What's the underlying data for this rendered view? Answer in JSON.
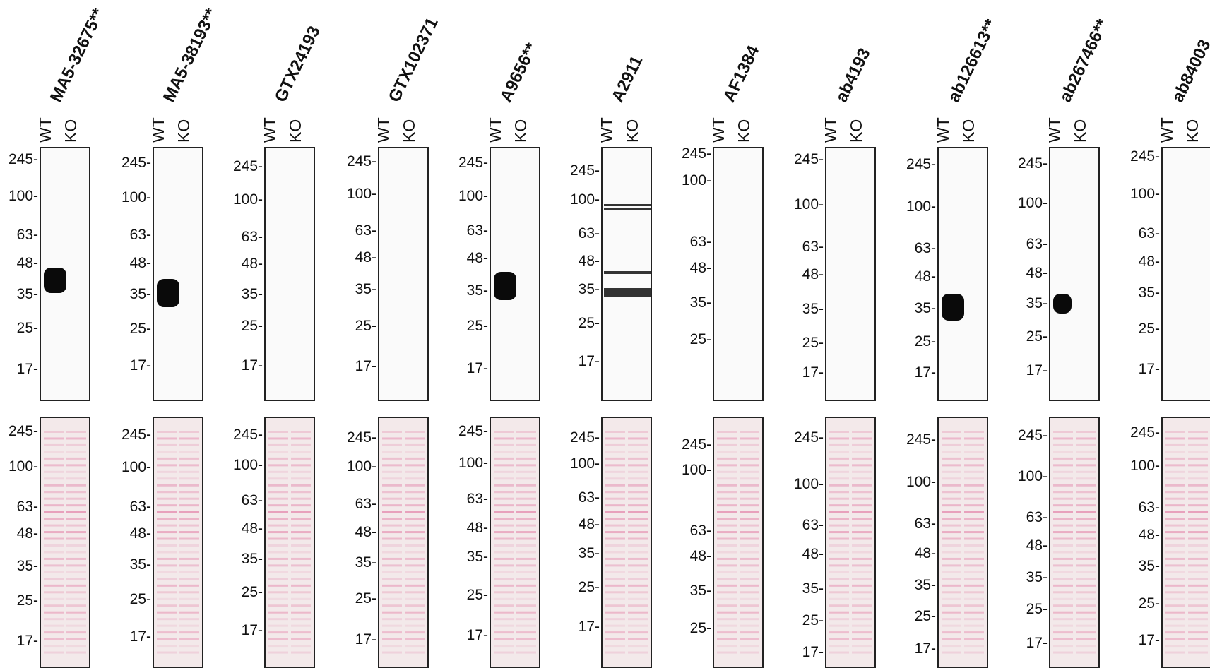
{
  "lanes": [
    "WT",
    "KO"
  ],
  "antibodies": [
    {
      "name": "MA5-32675**",
      "blot_mw": [
        "245-",
        "100-",
        "63-",
        "48-",
        "35-",
        "25-",
        "17-"
      ],
      "stain_mw": [
        "245-",
        "100-",
        "63-",
        "48-",
        "35-",
        "25-",
        "17-"
      ]
    },
    {
      "name": "MA5-38193**",
      "blot_mw": [
        "245-",
        "100-",
        "63-",
        "48-",
        "35-",
        "25-",
        "17-"
      ],
      "stain_mw": [
        "245-",
        "100-",
        "63-",
        "48-",
        "35-",
        "25-",
        "17-"
      ]
    },
    {
      "name": "GTX24193",
      "blot_mw": [
        "245-",
        "100-",
        "63-",
        "48-",
        "35-",
        "25-",
        "17-"
      ],
      "stain_mw": [
        "245-",
        "100-",
        "63-",
        "48-",
        "35-",
        "25-",
        "17-"
      ]
    },
    {
      "name": "GTX102371",
      "blot_mw": [
        "245-",
        "100-",
        "63-",
        "48-",
        "35-",
        "25-",
        "17-"
      ],
      "stain_mw": [
        "245-",
        "100-",
        "63-",
        "48-",
        "35-",
        "25-",
        "17-"
      ]
    },
    {
      "name": "A9656**",
      "blot_mw": [
        "245-",
        "100-",
        "63-",
        "48-",
        "35-",
        "25-",
        "17-"
      ],
      "stain_mw": [
        "245-",
        "100-",
        "63-",
        "48-",
        "35-",
        "25-",
        "17-"
      ]
    },
    {
      "name": "A2911",
      "blot_mw": [
        "245-",
        "100-",
        "63-",
        "48-",
        "35-",
        "25-",
        "17-"
      ],
      "stain_mw": [
        "245-",
        "100-",
        "63-",
        "48-",
        "35-",
        "25-",
        "17-"
      ]
    },
    {
      "name": "AF1384",
      "blot_mw": [
        "245-",
        "100-",
        "63-",
        "48-",
        "35-",
        "25-"
      ],
      "stain_mw": [
        "245-",
        "100-",
        "63-",
        "48-",
        "35-",
        "25-"
      ]
    },
    {
      "name": "ab4193",
      "blot_mw": [
        "245-",
        "100-",
        "63-",
        "48-",
        "35-",
        "25-",
        "17-"
      ],
      "stain_mw": [
        "245-",
        "100-",
        "63-",
        "48-",
        "35-",
        "25-",
        "17-"
      ]
    },
    {
      "name": "ab126613**",
      "blot_mw": [
        "245-",
        "100-",
        "63-",
        "48-",
        "35-",
        "25-",
        "17-"
      ],
      "stain_mw": [
        "245-",
        "100-",
        "63-",
        "48-",
        "35-",
        "25-",
        "17-"
      ]
    },
    {
      "name": "ab267466**",
      "blot_mw": [
        "245-",
        "100-",
        "63-",
        "48-",
        "35-",
        "25-",
        "17-"
      ],
      "stain_mw": [
        "245-",
        "100-",
        "63-",
        "48-",
        "35-",
        "25-",
        "17-"
      ]
    },
    {
      "name": "ab84003",
      "blot_mw": [
        "245-",
        "100-",
        "63-",
        "48-",
        "35-",
        "25-",
        "17-"
      ],
      "stain_mw": [
        "245-",
        "100-",
        "63-",
        "48-",
        "35-",
        "25-",
        "17-"
      ]
    }
  ],
  "colors": {
    "border": "#222222",
    "band": "#0a0a0a",
    "ponceau_bg": "#f3e9ea",
    "ponceau_band": "#e58fb0",
    "blot_bg": "#fafafa"
  }
}
